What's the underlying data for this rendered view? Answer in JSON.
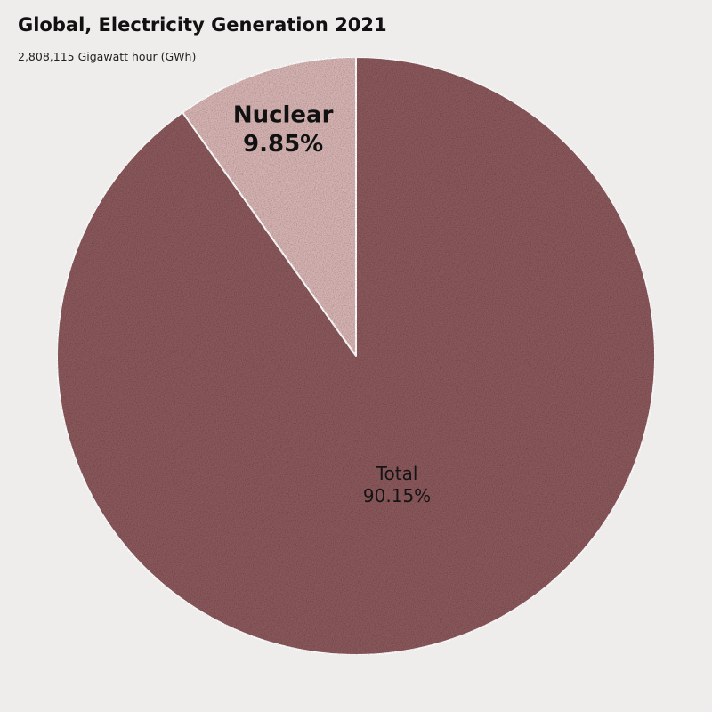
{
  "colors": {
    "background": "#eeedeb",
    "title": "#111111",
    "slice_separator": "#ffffff"
  },
  "chart_data": {
    "type": "pie",
    "title": "Global, Electricity Generation 2021",
    "subtitle": "2,808,115 Gigawatt hour (GWh)",
    "slices": [
      {
        "name": "Nuclear",
        "value": 9.85,
        "value_label": "9.85%",
        "color": "#d6b3b2",
        "label_weight": "bold",
        "label_color": "#111111"
      },
      {
        "name": "Total",
        "value": 90.15,
        "value_label": "90.15%",
        "color": "#8a585b",
        "label_weight": "normal",
        "label_color": "#141414"
      }
    ],
    "start_angle": "12 o'clock",
    "direction": "counter-clockwise",
    "legend": "none"
  }
}
